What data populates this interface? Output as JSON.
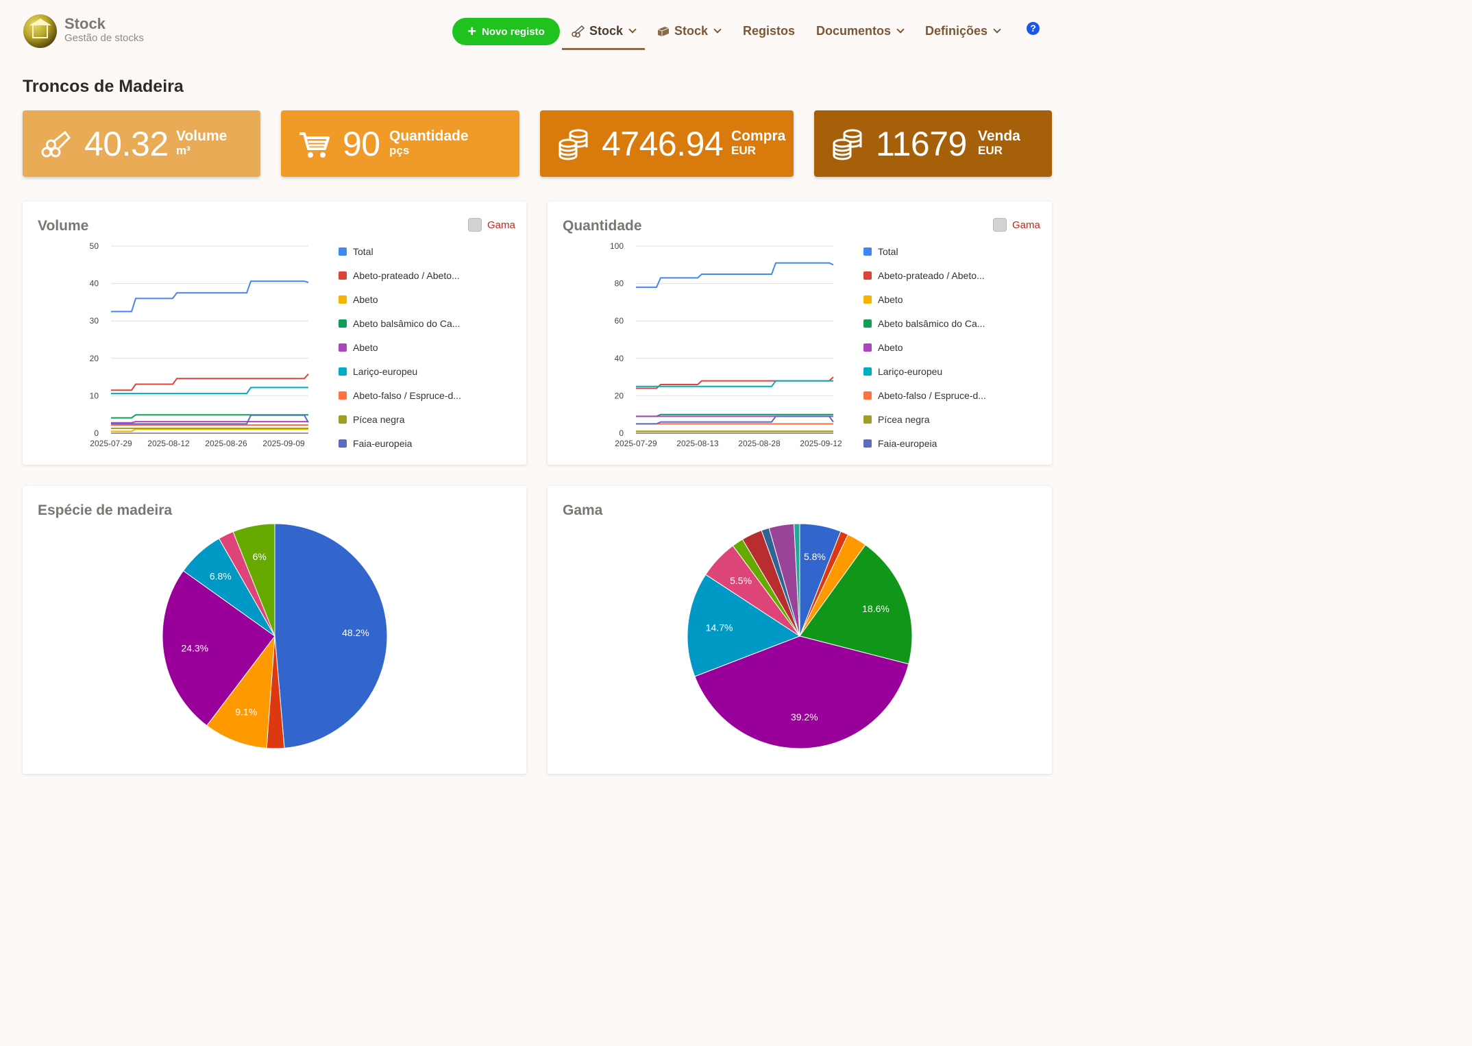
{
  "header": {
    "app_title": "Stock",
    "app_subtitle": "Gestão de stocks",
    "new_button": "Novo registo",
    "nav": [
      {
        "label": "Stock",
        "icon": "logs-icon",
        "dropdown": true,
        "active": true
      },
      {
        "label": "Stock",
        "icon": "planks-icon",
        "dropdown": true,
        "active": false
      },
      {
        "label": "Registos",
        "dropdown": false,
        "active": false
      },
      {
        "label": "Documentos",
        "dropdown": true,
        "active": false
      },
      {
        "label": "Definições",
        "dropdown": true,
        "active": false
      }
    ],
    "help": "?"
  },
  "page_title": "Troncos de Madeira",
  "kpis": [
    {
      "value": "40.32",
      "label": "Volume",
      "unit": "m³",
      "color": "#e9ab55",
      "icon": "logs-icon"
    },
    {
      "value": "90",
      "label": "Quantidade",
      "unit": "pçs",
      "color": "#f09a28",
      "icon": "cart-icon"
    },
    {
      "value": "4746.94",
      "label": "Compra",
      "unit": "EUR",
      "color": "#d97b0c",
      "icon": "coins-icon"
    },
    {
      "value": "11679",
      "label": "Venda",
      "unit": "EUR",
      "color": "#a7600a",
      "icon": "coins-icon"
    }
  ],
  "gama_label": "Gama",
  "legend": [
    {
      "name": "Total",
      "color": "#4285f4"
    },
    {
      "name": "Abeto-prateado / Abeto...",
      "color": "#db4437"
    },
    {
      "name": "Abeto",
      "color": "#f4b400"
    },
    {
      "name": "Abeto balsâmico do Ca...",
      "color": "#0f9d58"
    },
    {
      "name": "Abeto",
      "color": "#ab47bc"
    },
    {
      "name": "Lariço-europeu",
      "color": "#00acc1"
    },
    {
      "name": "Abeto-falso / Espruce-d...",
      "color": "#ff7043"
    },
    {
      "name": "Pícea negra",
      "color": "#9e9d24"
    },
    {
      "name": "Faia-europeia",
      "color": "#5c6bc0"
    }
  ],
  "chart_data": [
    {
      "type": "line",
      "title": "Volume",
      "ylim": [
        0,
        50
      ],
      "yticks": [
        "0",
        "10",
        "20",
        "30",
        "40",
        "50"
      ],
      "xticks": [
        "2025-07-29",
        "2025-08-12",
        "2025-08-26",
        "2025-09-09"
      ],
      "x": [
        "2025-07-29",
        "2025-08-03",
        "2025-08-04",
        "2025-08-13",
        "2025-08-14",
        "2025-08-31",
        "2025-09-01",
        "2025-09-14",
        "2025-09-15"
      ],
      "series": [
        {
          "name": "Total",
          "color": "#4285f4",
          "values": [
            32.5,
            32.5,
            36,
            36,
            37.5,
            37.5,
            40.6,
            40.6,
            40.3
          ]
        },
        {
          "name": "Abeto-prateado / Abeto...",
          "color": "#db4437",
          "values": [
            11.5,
            11.5,
            13.1,
            13.1,
            14.6,
            14.6,
            14.6,
            14.6,
            15.8
          ]
        },
        {
          "name": "Abeto",
          "color": "#f4b400",
          "values": [
            0.5,
            0.5,
            1.1,
            1.1,
            1.1,
            1.1,
            1.1,
            1.1,
            1.1
          ]
        },
        {
          "name": "Abeto balsâmico do Ca...",
          "color": "#0f9d58",
          "values": [
            4.1,
            4.1,
            4.9,
            4.9,
            4.9,
            4.9,
            4.9,
            4.9,
            4.9
          ]
        },
        {
          "name": "Abeto",
          "color": "#ab47bc",
          "values": [
            2.8,
            2.8,
            3.1,
            3.1,
            3.1,
            3.1,
            3.1,
            3.1,
            3.1
          ]
        },
        {
          "name": "Lariço-europeu",
          "color": "#00acc1",
          "values": [
            10.6,
            10.6,
            10.6,
            10.6,
            10.6,
            10.6,
            12.2,
            12.2,
            12.2
          ]
        },
        {
          "name": "Abeto-falso / Espruce-d...",
          "color": "#ff7043",
          "values": [
            2.2,
            2.2,
            2.2,
            2.2,
            2.2,
            2.2,
            2.2,
            2.2,
            2.2
          ]
        },
        {
          "name": "Pícea negra",
          "color": "#9e9d24",
          "values": [
            1.3,
            1.3,
            1.3,
            1.3,
            1.3,
            1.3,
            1.3,
            1.3,
            1.3
          ]
        },
        {
          "name": "Faia-europeia",
          "color": "#5c6bc0",
          "values": [
            2.5,
            2.5,
            2.5,
            2.5,
            2.5,
            2.5,
            4.8,
            4.8,
            2.9
          ]
        }
      ]
    },
    {
      "type": "line",
      "title": "Quantidade",
      "ylim": [
        0,
        100
      ],
      "yticks": [
        "0",
        "20",
        "40",
        "60",
        "80",
        "100"
      ],
      "xticks": [
        "2025-07-29",
        "2025-08-13",
        "2025-08-28",
        "2025-09-12"
      ],
      "x": [
        "2025-07-29",
        "2025-08-03",
        "2025-08-04",
        "2025-08-13",
        "2025-08-14",
        "2025-08-31",
        "2025-09-01",
        "2025-09-14",
        "2025-09-15"
      ],
      "series": [
        {
          "name": "Total",
          "color": "#4285f4",
          "values": [
            78,
            78,
            83,
            83,
            85,
            85,
            91,
            91,
            90
          ]
        },
        {
          "name": "Abeto-prateado / Abeto...",
          "color": "#db4437",
          "values": [
            24,
            24,
            26,
            26,
            28,
            28,
            28,
            28,
            30
          ]
        },
        {
          "name": "Abeto",
          "color": "#f4b400",
          "values": [
            1,
            1,
            1,
            1,
            1,
            1,
            1,
            1,
            1
          ]
        },
        {
          "name": "Abeto balsâmico do Ca...",
          "color": "#0f9d58",
          "values": [
            9,
            9,
            10,
            10,
            10,
            10,
            10,
            10,
            10
          ]
        },
        {
          "name": "Abeto",
          "color": "#ab47bc",
          "values": [
            9,
            9,
            9,
            9,
            9,
            9,
            9,
            9,
            9
          ]
        },
        {
          "name": "Lariço-europeu",
          "color": "#00acc1",
          "values": [
            25,
            25,
            25,
            25,
            25,
            25,
            28,
            28,
            28
          ]
        },
        {
          "name": "Abeto-falso / Espruce-d...",
          "color": "#ff7043",
          "values": [
            5,
            5,
            5,
            5,
            5,
            5,
            5,
            5,
            5
          ]
        },
        {
          "name": "Pícea negra",
          "color": "#9e9d24",
          "values": [
            1,
            1,
            1,
            1,
            1,
            1,
            1,
            1,
            1
          ]
        },
        {
          "name": "Faia-europeia",
          "color": "#5c6bc0",
          "values": [
            5,
            5,
            6,
            6,
            6,
            6,
            9,
            9,
            6
          ]
        }
      ]
    },
    {
      "type": "pie",
      "title": "Espécie de madeira",
      "slices": [
        {
          "value": 48.2,
          "label": "48.2%",
          "color": "#3366cc"
        },
        {
          "value": 2.5,
          "label": "",
          "color": "#dc3912"
        },
        {
          "value": 9.1,
          "label": "9.1%",
          "color": "#ff9900"
        },
        {
          "value": 24.3,
          "label": "24.3%",
          "color": "#990099"
        },
        {
          "value": 6.8,
          "label": "6.8%",
          "color": "#0099c6"
        },
        {
          "value": 2.2,
          "label": "",
          "color": "#dd4477"
        },
        {
          "value": 6.0,
          "label": "6%",
          "color": "#66aa00"
        }
      ]
    },
    {
      "type": "pie",
      "title": "Gama",
      "slices": [
        {
          "value": 5.8,
          "label": "5.8%",
          "color": "#3366cc"
        },
        {
          "value": 1.1,
          "label": "",
          "color": "#dc3912"
        },
        {
          "value": 2.8,
          "label": "",
          "color": "#ff9900"
        },
        {
          "value": 18.6,
          "label": "18.6%",
          "color": "#109618"
        },
        {
          "value": 39.2,
          "label": "39.2%",
          "color": "#990099"
        },
        {
          "value": 14.7,
          "label": "14.7%",
          "color": "#0099c6"
        },
        {
          "value": 5.5,
          "label": "5.5%",
          "color": "#dd4477"
        },
        {
          "value": 1.6,
          "label": "",
          "color": "#66aa00"
        },
        {
          "value": 2.9,
          "label": "",
          "color": "#b82e2e"
        },
        {
          "value": 1.1,
          "label": "",
          "color": "#316395"
        },
        {
          "value": 3.5,
          "label": "",
          "color": "#994499"
        },
        {
          "value": 0.8,
          "label": "",
          "color": "#22aa99"
        }
      ]
    }
  ]
}
